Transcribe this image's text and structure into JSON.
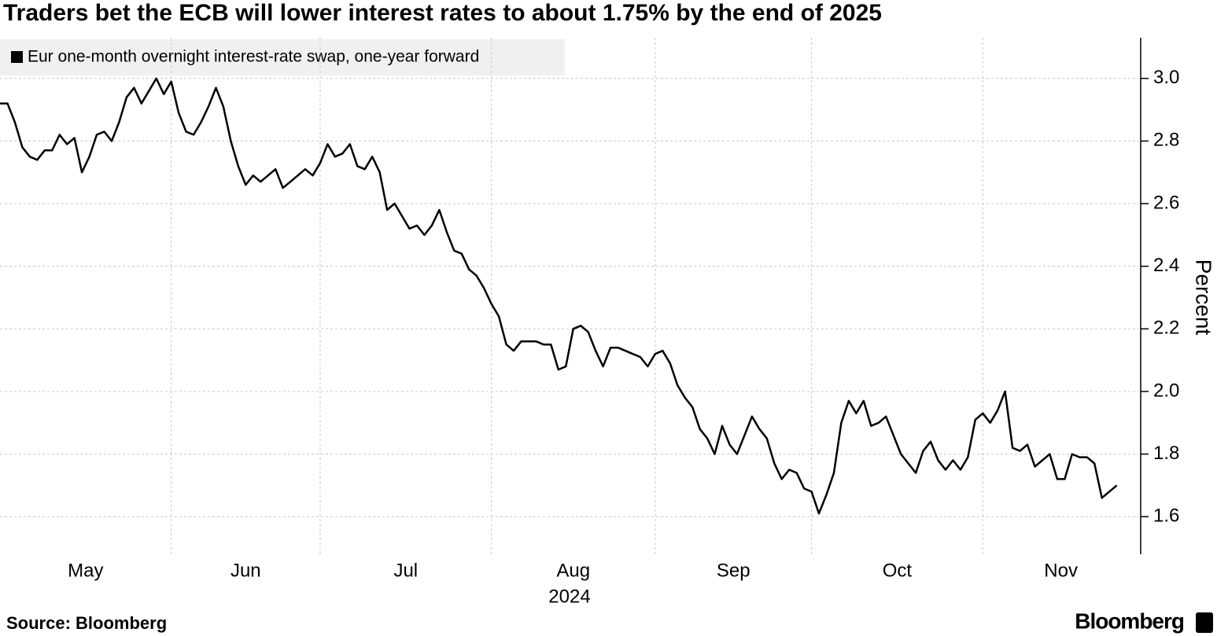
{
  "chart_data": {
    "type": "line",
    "title": "Traders bet the ECB will lower interest rates to about 1.75% by the end of 2025",
    "ylabel": "Percent",
    "xlabel": "2024",
    "source": "Source:  Bloomberg",
    "logo": "Bloomberg",
    "grid": true,
    "legend": "top-left",
    "xlim": [
      0,
      153
    ],
    "xticks": [
      {
        "value": 0,
        "label": "May"
      },
      {
        "value": 23,
        "label": "Jun"
      },
      {
        "value": 43,
        "label": "Jul"
      },
      {
        "value": 66,
        "label": "Aug"
      },
      {
        "value": 88,
        "label": "Sep"
      },
      {
        "value": 109,
        "label": "Oct"
      },
      {
        "value": 132,
        "label": "Nov"
      }
    ],
    "ylim": [
      1.48,
      3.13
    ],
    "yticks": [
      {
        "value": 1.6,
        "label": "1.6"
      },
      {
        "value": 1.8,
        "label": "1.8"
      },
      {
        "value": 2.0,
        "label": "2.0"
      },
      {
        "value": 2.2,
        "label": "2.2"
      },
      {
        "value": 2.4,
        "label": "2.4"
      },
      {
        "value": 2.6,
        "label": "2.6"
      },
      {
        "value": 2.8,
        "label": "2.8"
      },
      {
        "value": 3.0,
        "label": "3.0"
      }
    ],
    "series": [
      {
        "name": "Eur one-month overnight interest-rate swap, one-year forward",
        "color": "#000000",
        "values": [
          2.92,
          2.92,
          2.86,
          2.78,
          2.75,
          2.74,
          2.77,
          2.77,
          2.82,
          2.79,
          2.81,
          2.7,
          2.75,
          2.82,
          2.83,
          2.8,
          2.86,
          2.94,
          2.97,
          2.92,
          2.96,
          3.0,
          2.95,
          2.99,
          2.89,
          2.83,
          2.82,
          2.86,
          2.91,
          2.97,
          2.91,
          2.8,
          2.72,
          2.66,
          2.69,
          2.67,
          2.69,
          2.71,
          2.65,
          2.67,
          2.69,
          2.71,
          2.69,
          2.73,
          2.79,
          2.75,
          2.76,
          2.79,
          2.72,
          2.71,
          2.75,
          2.7,
          2.58,
          2.6,
          2.56,
          2.52,
          2.53,
          2.5,
          2.53,
          2.58,
          2.51,
          2.45,
          2.44,
          2.39,
          2.37,
          2.33,
          2.28,
          2.24,
          2.15,
          2.13,
          2.16,
          2.16,
          2.16,
          2.15,
          2.15,
          2.07,
          2.08,
          2.2,
          2.21,
          2.19,
          2.13,
          2.08,
          2.14,
          2.14,
          2.13,
          2.12,
          2.11,
          2.08,
          2.12,
          2.13,
          2.09,
          2.02,
          1.98,
          1.95,
          1.88,
          1.85,
          1.8,
          1.89,
          1.83,
          1.8,
          1.86,
          1.92,
          1.88,
          1.85,
          1.77,
          1.72,
          1.75,
          1.74,
          1.69,
          1.68,
          1.61,
          1.67,
          1.74,
          1.9,
          1.97,
          1.93,
          1.97,
          1.89,
          1.9,
          1.92,
          1.86,
          1.8,
          1.77,
          1.74,
          1.81,
          1.84,
          1.78,
          1.75,
          1.78,
          1.75,
          1.79,
          1.91,
          1.93,
          1.9,
          1.94,
          2.0,
          1.82,
          1.81,
          1.83,
          1.76,
          1.78,
          1.8,
          1.72,
          1.72,
          1.8,
          1.79,
          1.79,
          1.77,
          1.66,
          1.68,
          1.7
        ]
      }
    ]
  }
}
